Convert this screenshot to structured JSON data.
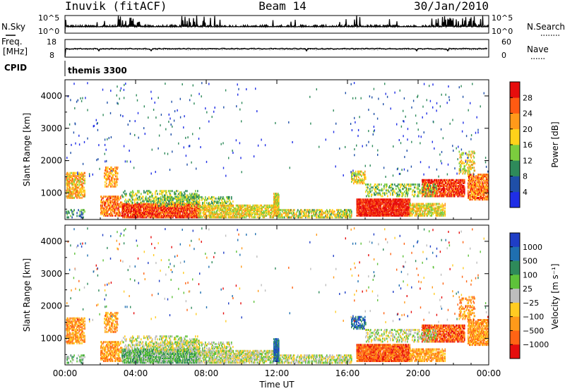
{
  "header": {
    "station": "Inuvik (fitACF)",
    "beam": "Beam 14",
    "date": "30/Jan/2010"
  },
  "nsky_panel": {
    "left_label": "N.Sky",
    "right_label": "N.Search",
    "left_ticks": [
      "10^5",
      "10^0"
    ],
    "right_ticks": [
      "10^5",
      "10^0"
    ]
  },
  "freq_panel": {
    "left_label_1": "Freq.",
    "left_label_2": "[MHz]",
    "right_label": "Nave",
    "left_ticks": [
      "18",
      "8"
    ],
    "right_ticks": [
      "60",
      "0"
    ]
  },
  "cpid": {
    "label": "CPID",
    "value": "themis 3300"
  },
  "chart_data": [
    {
      "type": "heatmap",
      "parameter": "Power",
      "ylabel": "Slant Range [km]",
      "y_ticks": [
        1000,
        2000,
        3000,
        4000
      ],
      "ylim": [
        180,
        4500
      ],
      "x_ticks": [
        "00:00",
        "04:00",
        "08:00",
        "12:00",
        "16:00",
        "20:00",
        "00:00"
      ],
      "colorbar_label": "Power [dB]",
      "colorbar_ticks": [
        "4",
        "8",
        "12",
        "16",
        "20",
        "24",
        "28"
      ],
      "colorbar_colors": [
        "#1f2ee6",
        "#1f4fa8",
        "#2e8a5a",
        "#7ccd3e",
        "#ffd21a",
        "#ff9a1a",
        "#ff5a12",
        "#e60d0d"
      ]
    },
    {
      "type": "heatmap",
      "parameter": "Velocity",
      "ylabel": "Slant Range [km]",
      "y_ticks": [
        1000,
        2000,
        3000,
        4000
      ],
      "ylim": [
        180,
        4500
      ],
      "x_ticks": [
        "00:00",
        "04:00",
        "08:00",
        "12:00",
        "16:00",
        "20:00",
        "00:00"
      ],
      "xlabel": "Time UT",
      "colorbar_label": "Velocity [m s⁻¹]",
      "colorbar_ticks": [
        "1000",
        "500",
        "100",
        "25",
        "−25",
        "−100",
        "−500",
        "−1000"
      ],
      "colorbar_colors": [
        "#1f3ec6",
        "#1f6fb0",
        "#2e8a5a",
        "#5ec23a",
        "#bdbdbd",
        "#ffcc22",
        "#ff9a1a",
        "#ff6414",
        "#e60d0d"
      ]
    }
  ]
}
